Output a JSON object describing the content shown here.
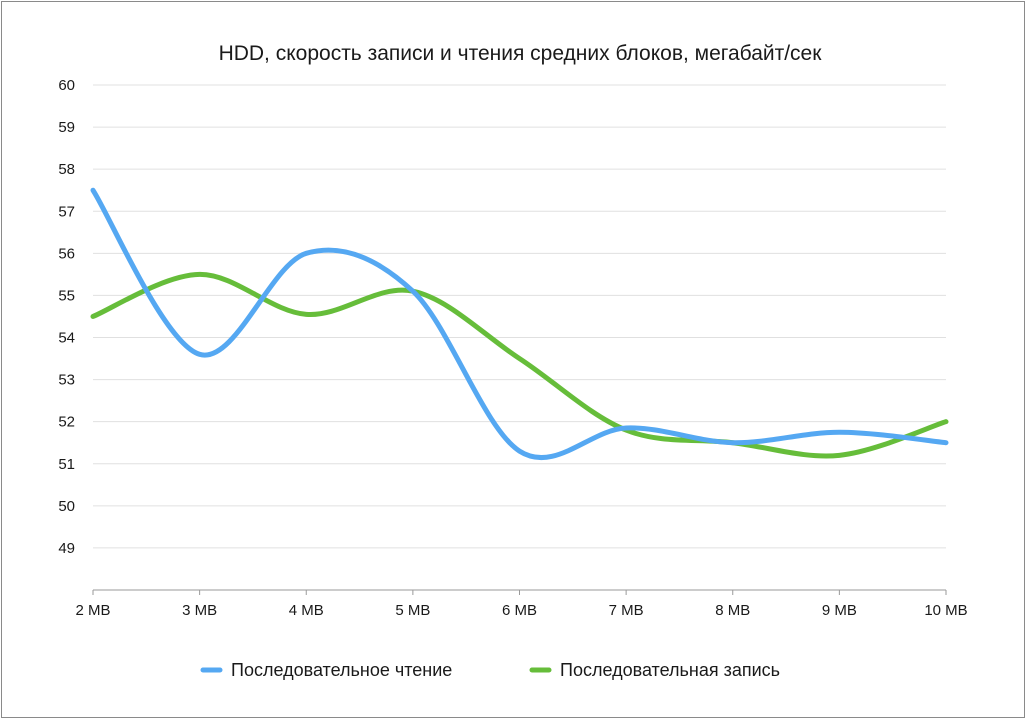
{
  "chart_data": {
    "type": "line",
    "title": "HDD, скорость записи и чтения средних блоков, мегабайт/сек",
    "xlabel": "",
    "ylabel": "",
    "categories": [
      "2 MB",
      "3 MB",
      "4 MB",
      "5 MB",
      "6 MB",
      "7 MB",
      "8 MB",
      "9 MB",
      "10 MB"
    ],
    "ylim": [
      48,
      60
    ],
    "yticks": [
      49,
      50,
      51,
      52,
      53,
      54,
      55,
      56,
      57,
      58,
      59,
      60
    ],
    "grid": true,
    "legend_position": "bottom",
    "smooth": true,
    "series": [
      {
        "name": "Последовательное чтение",
        "color": "#55a8f2",
        "values": [
          57.5,
          53.6,
          56.0,
          55.1,
          51.3,
          51.85,
          51.5,
          51.75,
          51.5
        ]
      },
      {
        "name": "Последовательная запись",
        "color": "#66bd3a",
        "values": [
          54.5,
          55.5,
          54.55,
          55.1,
          53.5,
          51.8,
          51.5,
          51.2,
          52.0
        ]
      }
    ]
  }
}
